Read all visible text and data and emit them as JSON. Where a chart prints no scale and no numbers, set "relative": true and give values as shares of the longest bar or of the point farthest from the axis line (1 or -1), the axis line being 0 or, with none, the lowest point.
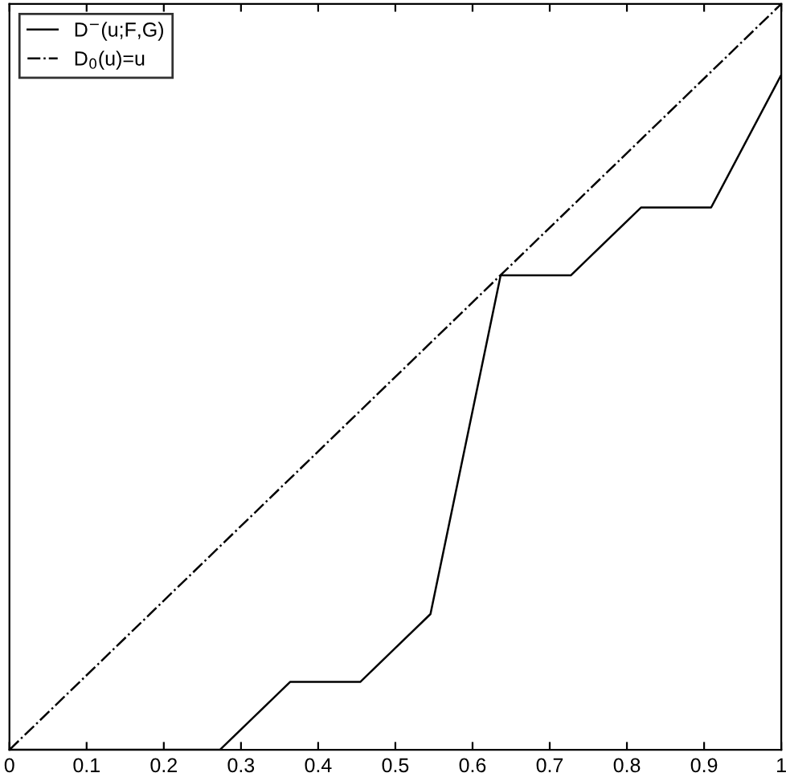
{
  "chart_data": {
    "type": "line",
    "relative": true,
    "xlim": [
      0,
      1
    ],
    "xticks": [
      0,
      0.1,
      0.2,
      0.3,
      0.4,
      0.5,
      0.6,
      0.7,
      0.8,
      0.9,
      1
    ],
    "tick_labels": "x",
    "legend": "top left",
    "series": [
      {
        "name": "D$^{−}$(u;F,G)",
        "color": "#000000",
        "line_style": "solid",
        "x": [
          0,
          0.2727,
          0.3636,
          0.4545,
          0.5455,
          0.6364,
          0.7273,
          0.8182,
          0.9091,
          1
        ],
        "values": [
          0,
          0,
          0.091,
          0.091,
          0.182,
          0.636,
          0.636,
          0.727,
          0.727,
          0.905
        ]
      },
      {
        "name": "D$_{0}$(u)=u",
        "color": "#000000",
        "line_style": "dashdot",
        "x": [
          0,
          1
        ],
        "values": [
          0,
          1
        ]
      }
    ]
  }
}
